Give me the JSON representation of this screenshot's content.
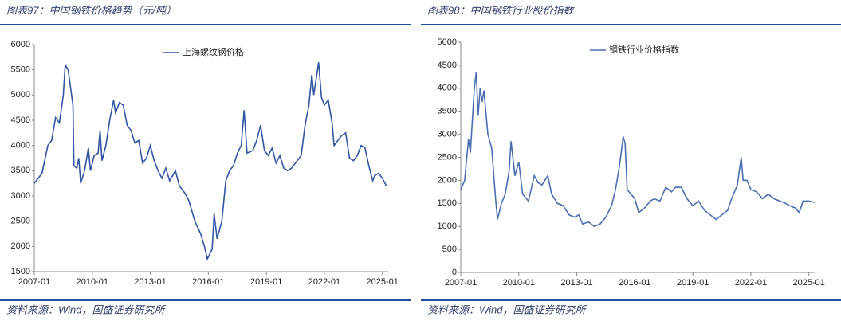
{
  "chart_data": [
    {
      "type": "line",
      "title": "图表97：中国钢铁价格趋势（元/吨）",
      "source": "资料来源：Wind，国盛证券研究所",
      "legend": "top-center",
      "x": [
        2007.0,
        2007.2,
        2007.4,
        2007.7,
        2007.9,
        2008.1,
        2008.3,
        2008.5,
        2008.6,
        2008.75,
        2009.0,
        2009.05,
        2009.2,
        2009.3,
        2009.4,
        2009.6,
        2009.8,
        2009.9,
        2010.1,
        2010.3,
        2010.4,
        2010.5,
        2010.7,
        2010.9,
        2011.1,
        2011.2,
        2011.4,
        2011.6,
        2011.8,
        2012.0,
        2012.2,
        2012.4,
        2012.6,
        2012.8,
        2013.0,
        2013.2,
        2013.4,
        2013.6,
        2013.8,
        2014.0,
        2014.3,
        2014.5,
        2014.8,
        2015.0,
        2015.3,
        2015.6,
        2015.8,
        2015.95,
        2016.2,
        2016.3,
        2016.45,
        2016.7,
        2016.9,
        2017.1,
        2017.3,
        2017.5,
        2017.7,
        2017.85,
        2018.0,
        2018.3,
        2018.5,
        2018.7,
        2018.9,
        2019.1,
        2019.3,
        2019.5,
        2019.7,
        2019.9,
        2020.1,
        2020.3,
        2020.5,
        2020.8,
        2021.0,
        2021.2,
        2021.35,
        2021.45,
        2021.7,
        2021.85,
        2022.0,
        2022.2,
        2022.4,
        2022.5,
        2022.7,
        2022.9,
        2023.1,
        2023.3,
        2023.5,
        2023.7,
        2023.9,
        2024.1,
        2024.3,
        2024.5,
        2024.6,
        2024.8,
        2025.0,
        2025.2
      ],
      "series": [
        {
          "name": "上海螺纹钢价格",
          "color": "#2f55a4",
          "values": [
            3250,
            3350,
            3450,
            4000,
            4100,
            4550,
            4450,
            5000,
            5600,
            5500,
            4800,
            3600,
            3550,
            3750,
            3250,
            3500,
            3950,
            3500,
            3800,
            3850,
            4300,
            3700,
            4000,
            4500,
            4900,
            4650,
            4850,
            4800,
            4400,
            4300,
            4050,
            4100,
            3650,
            3750,
            4000,
            3700,
            3500,
            3350,
            3550,
            3300,
            3500,
            3200,
            3050,
            2900,
            2500,
            2250,
            2000,
            1750,
            1950,
            2650,
            2150,
            2500,
            3300,
            3500,
            3600,
            3850,
            4000,
            4700,
            3850,
            3900,
            4100,
            4400,
            3900,
            3800,
            3950,
            3650,
            3800,
            3550,
            3500,
            3550,
            3650,
            3800,
            4400,
            4800,
            5400,
            5000,
            5650,
            4950,
            4800,
            4900,
            4450,
            4000,
            4100,
            4200,
            4250,
            3750,
            3700,
            3800,
            4000,
            3950,
            3600,
            3300,
            3400,
            3450,
            3350,
            3200
          ]
        }
      ],
      "xlim": [
        2007,
        2025.3
      ],
      "xticks": [
        {
          "value": 2007,
          "label": "2007-01"
        },
        {
          "value": 2010,
          "label": "2010-01"
        },
        {
          "value": 2013,
          "label": "2013-01"
        },
        {
          "value": 2016,
          "label": "2016-01"
        },
        {
          "value": 2019,
          "label": "2019-01"
        },
        {
          "value": 2022,
          "label": "2022-01"
        },
        {
          "value": 2025,
          "label": "2025-01"
        }
      ],
      "ylim": [
        1500,
        6000
      ],
      "yticks": [
        1500,
        2000,
        2500,
        3000,
        3500,
        4000,
        4500,
        5000,
        5500,
        6000
      ]
    },
    {
      "type": "line",
      "title": "图表98：中国钢铁行业股价指数",
      "source": "资料来源：Wind，国盛证券研究所",
      "legend": "top-center",
      "x": [
        2007.0,
        2007.2,
        2007.4,
        2007.5,
        2007.7,
        2007.8,
        2007.9,
        2008.0,
        2008.1,
        2008.2,
        2008.4,
        2008.6,
        2008.8,
        2008.9,
        2009.1,
        2009.3,
        2009.5,
        2009.6,
        2009.8,
        2010.0,
        2010.2,
        2010.4,
        2010.5,
        2010.8,
        2011.0,
        2011.2,
        2011.5,
        2011.7,
        2012.0,
        2012.3,
        2012.6,
        2012.9,
        2013.1,
        2013.3,
        2013.6,
        2013.9,
        2014.2,
        2014.5,
        2014.8,
        2015.0,
        2015.2,
        2015.4,
        2015.5,
        2015.6,
        2015.8,
        2016.0,
        2016.2,
        2016.5,
        2016.8,
        2017.0,
        2017.3,
        2017.6,
        2017.9,
        2018.1,
        2018.4,
        2018.7,
        2019.0,
        2019.3,
        2019.6,
        2019.9,
        2020.2,
        2020.5,
        2020.8,
        2021.0,
        2021.3,
        2021.5,
        2021.6,
        2021.8,
        2022.0,
        2022.3,
        2022.6,
        2022.9,
        2023.2,
        2023.5,
        2023.8,
        2024.0,
        2024.3,
        2024.5,
        2024.7,
        2025.0,
        2025.3
      ],
      "series": [
        {
          "name": "钢铁行业价格指数",
          "color": "#4a6fb0",
          "values": [
            1800,
            2000,
            2900,
            2600,
            4000,
            4350,
            3400,
            4000,
            3700,
            3950,
            3000,
            2700,
            1600,
            1150,
            1500,
            1700,
            2200,
            2850,
            2100,
            2400,
            1700,
            1600,
            1550,
            2100,
            1950,
            1900,
            2100,
            1700,
            1500,
            1450,
            1250,
            1200,
            1250,
            1050,
            1100,
            1000,
            1050,
            1200,
            1450,
            1800,
            2300,
            2950,
            2800,
            1800,
            1700,
            1600,
            1300,
            1400,
            1550,
            1600,
            1550,
            1850,
            1750,
            1850,
            1850,
            1600,
            1450,
            1550,
            1350,
            1250,
            1150,
            1250,
            1350,
            1600,
            1900,
            2500,
            2000,
            2000,
            1800,
            1750,
            1600,
            1700,
            1600,
            1550,
            1500,
            1450,
            1400,
            1300,
            1550,
            1550,
            1520
          ]
        }
      ],
      "xlim": [
        2007,
        2025.3
      ],
      "xticks": [
        {
          "value": 2007,
          "label": "2007-01"
        },
        {
          "value": 2010,
          "label": "2010-01"
        },
        {
          "value": 2013,
          "label": "2013-01"
        },
        {
          "value": 2016,
          "label": "2016-01"
        },
        {
          "value": 2019,
          "label": "2019-01"
        },
        {
          "value": 2022,
          "label": "2022-01"
        },
        {
          "value": 2025,
          "label": "2025-01"
        }
      ],
      "ylim": [
        0,
        5000
      ],
      "yticks": [
        0,
        500,
        1000,
        1500,
        2000,
        2500,
        3000,
        3500,
        4000,
        4500,
        5000
      ]
    }
  ]
}
